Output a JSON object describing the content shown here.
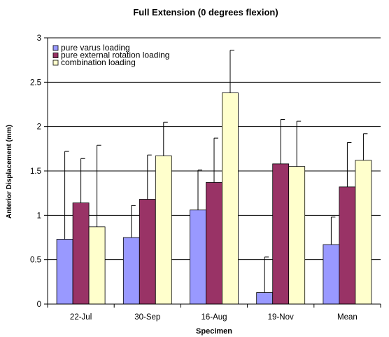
{
  "chart_data": {
    "type": "bar",
    "title": "Full Extension (0 degrees flexion)",
    "xlabel": "Specimen",
    "ylabel": "Anterior Displacement (mm)",
    "ylim": [
      0,
      3
    ],
    "yticks": [
      "0",
      "0.5",
      "1",
      "1.5",
      "2",
      "2.5",
      "3"
    ],
    "grid": true,
    "legend_position": "top-left",
    "categories": [
      "22-Jul",
      "30-Sep",
      "16-Aug",
      "19-Nov",
      "Mean"
    ],
    "series": [
      {
        "name": "pure varus loading",
        "color": "#9999ff",
        "values": [
          0.73,
          0.75,
          1.06,
          0.13,
          0.67
        ],
        "errors": [
          0.99,
          0.36,
          0.45,
          0.4,
          0.31
        ]
      },
      {
        "name": "pure external rotation loading",
        "color": "#993366",
        "values": [
          1.14,
          1.18,
          1.37,
          1.58,
          1.32
        ],
        "errors": [
          0.5,
          0.5,
          0.5,
          0.5,
          0.5
        ]
      },
      {
        "name": "combination loading",
        "color": "#ffffcc",
        "values": [
          0.87,
          1.67,
          2.38,
          1.55,
          1.62
        ],
        "errors": [
          0.92,
          0.38,
          0.48,
          0.51,
          0.3
        ]
      }
    ]
  }
}
